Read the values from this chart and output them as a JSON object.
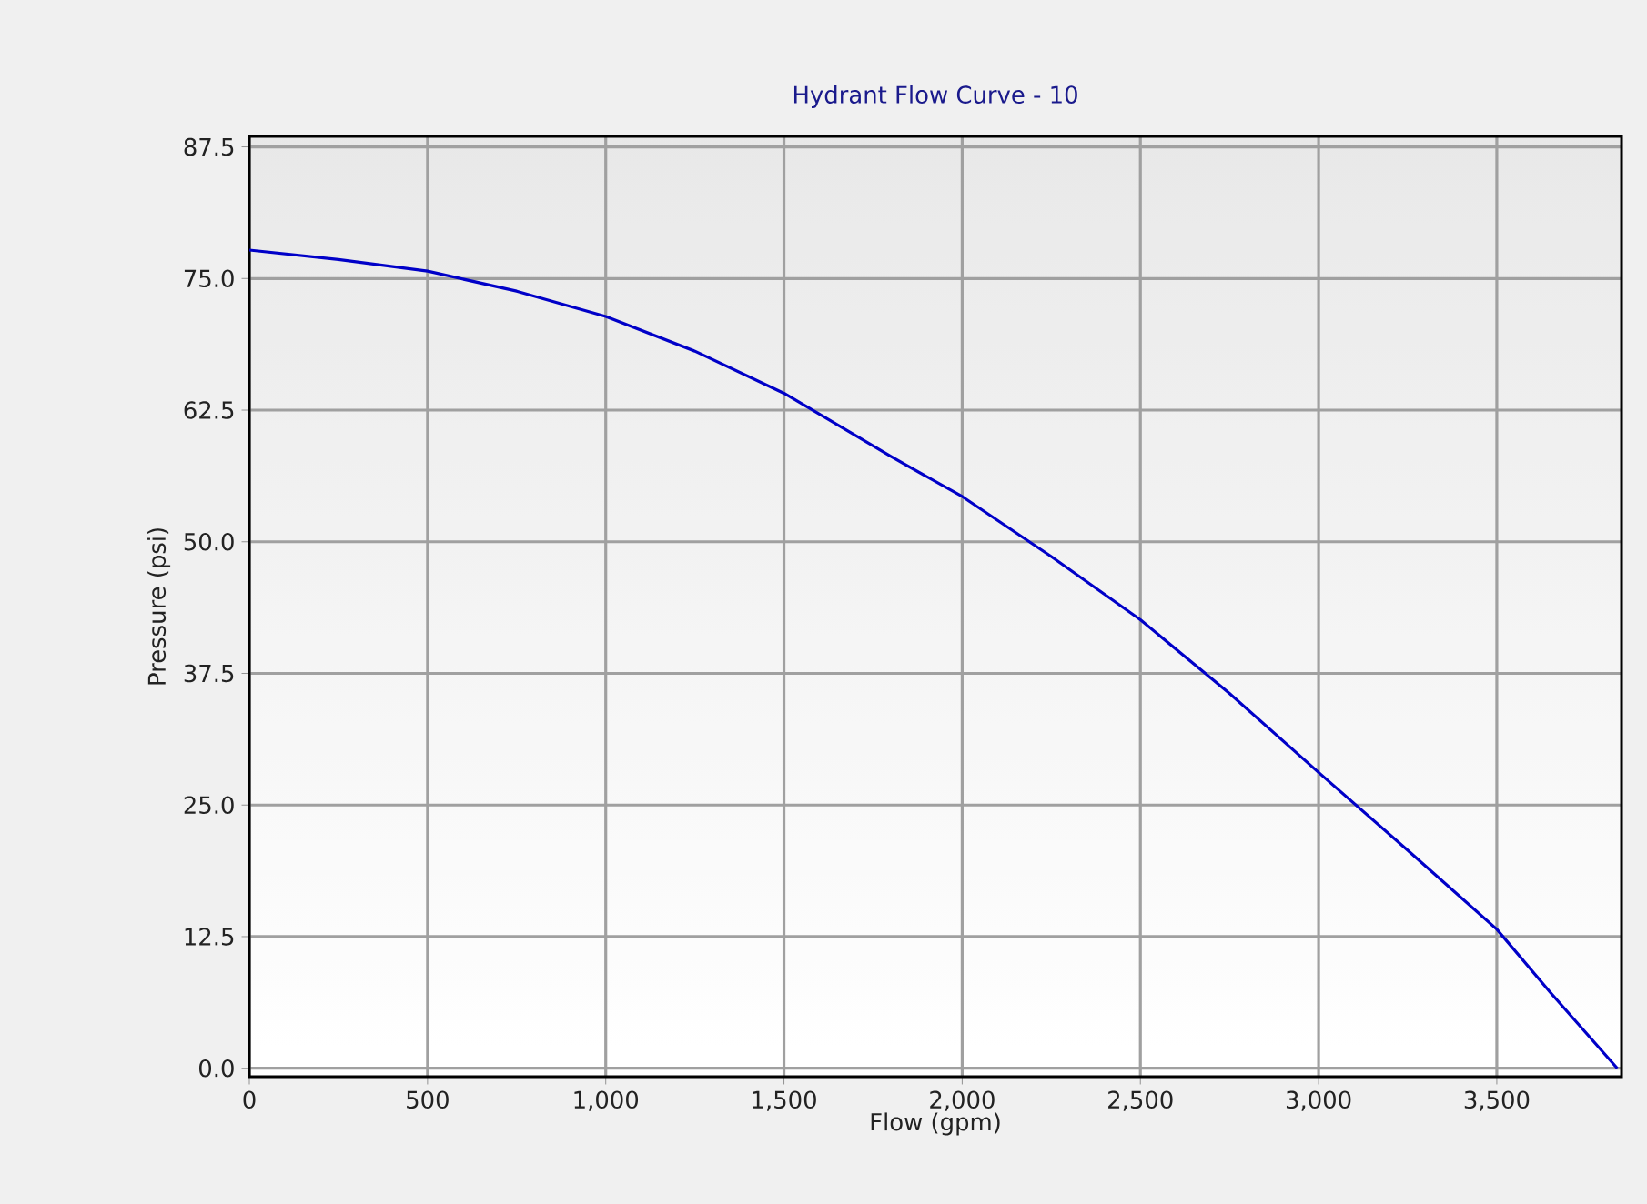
{
  "chart_data": {
    "type": "line",
    "title": "Hydrant Flow Curve - 10",
    "xlabel": "Flow (gpm)",
    "ylabel": "Pressure (psi)",
    "x": [
      0,
      250,
      500,
      750,
      1000,
      1250,
      1500,
      1800,
      2000,
      2250,
      2500,
      2750,
      3000,
      3250,
      3500,
      3650,
      3838
    ],
    "series": [
      {
        "color": "#0000c8",
        "values": [
          77.7,
          76.8,
          75.7,
          73.8,
          71.4,
          68.1,
          64.1,
          58.1,
          54.3,
          48.6,
          42.6,
          35.6,
          28.1,
          20.7,
          13.2,
          7.2,
          0
        ]
      }
    ],
    "xlim": [
      0,
      3850
    ],
    "ylim": [
      -0.8,
      88.5
    ],
    "xticks": [
      0,
      500,
      {
        "value": 1000,
        "label": "1,000"
      },
      {
        "value": 1500,
        "label": "1,500"
      },
      {
        "value": 2000,
        "label": "2,000"
      },
      {
        "value": 2500,
        "label": "2,500"
      },
      {
        "value": 3000,
        "label": "3,000"
      },
      {
        "value": 3500,
        "label": "3,500"
      }
    ],
    "yticks": [
      {
        "value": 0,
        "label": "0.0"
      },
      12.5,
      {
        "value": 25,
        "label": "25.0"
      },
      37.5,
      {
        "value": 50,
        "label": "50.0"
      },
      62.5,
      {
        "value": 75,
        "label": "75.0"
      },
      87.5
    ],
    "grid": true
  }
}
